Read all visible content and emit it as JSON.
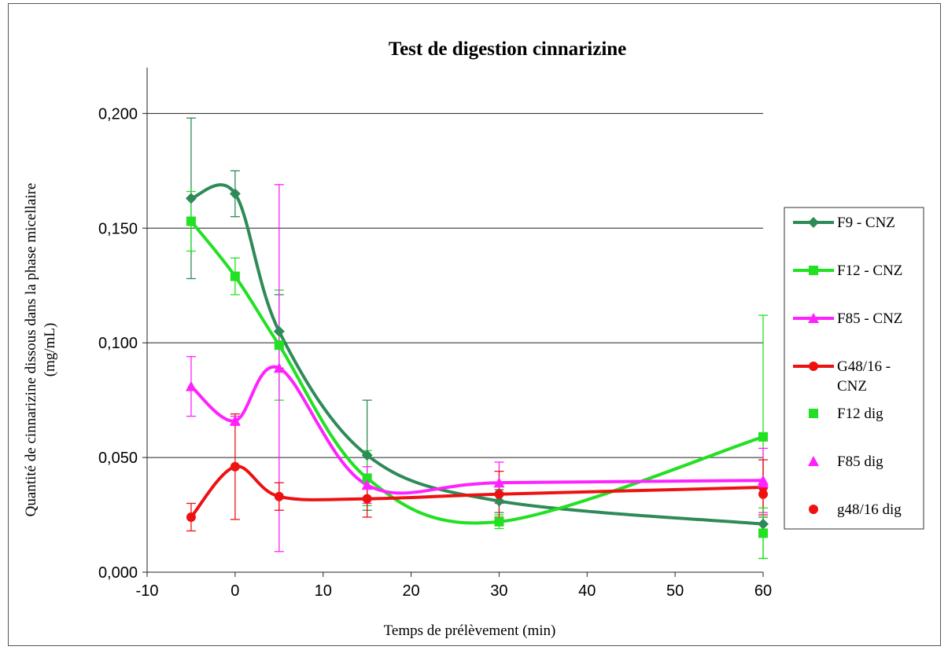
{
  "chart_data": {
    "type": "line",
    "title": "Test de digestion cinnarizine",
    "xlabel": "Temps de prélèvement (min)",
    "ylabel_lines": [
      "Quantité de cinnarizine dissous dans  la phase micellaire",
      "(mg/mL)"
    ],
    "xlim": [
      -10,
      60
    ],
    "ylim": [
      0,
      0.22
    ],
    "x_ticks": [
      -10,
      0,
      10,
      20,
      30,
      40,
      50,
      60
    ],
    "x_tick_labels": [
      "-10",
      "0",
      "10",
      "20",
      "30",
      "40",
      "50",
      "60"
    ],
    "y_ticks": [
      0,
      0.05,
      0.1,
      0.15,
      0.2
    ],
    "y_tick_labels": [
      "0,000",
      "0,050",
      "0,100",
      "0,150",
      "0,200"
    ],
    "grid": "horizontal",
    "legend_position": "right",
    "series": [
      {
        "name": "F9 - CNZ",
        "color": "#2e8b57",
        "marker": "diamond",
        "line": true,
        "x": [
          -5,
          0,
          5,
          15,
          30,
          60
        ],
        "y": [
          0.163,
          0.165,
          0.105,
          0.051,
          0.031,
          0.021
        ],
        "err": [
          0.035,
          0.01,
          0.016,
          0.024,
          0.005,
          0.003
        ]
      },
      {
        "name": "F12 - CNZ",
        "color": "#22e022",
        "marker": "square",
        "line": true,
        "x": [
          -5,
          0,
          5,
          15,
          30,
          60
        ],
        "y": [
          0.153,
          0.129,
          0.099,
          0.041,
          0.022,
          0.059
        ],
        "err": [
          0.013,
          0.008,
          0.024,
          0.012,
          0.003,
          0.053
        ]
      },
      {
        "name": "F85 - CNZ",
        "color": "#ff22ff",
        "marker": "triangle",
        "line": true,
        "x": [
          -5,
          0,
          5,
          15,
          30,
          60
        ],
        "y": [
          0.081,
          0.066,
          0.089,
          0.038,
          0.039,
          0.04
        ],
        "err": [
          0.013,
          0.002,
          0.08,
          0.008,
          0.009,
          0.014
        ]
      },
      {
        "name": "G48/16 - CNZ",
        "legend_lines": [
          "G48/16 -",
          "CNZ"
        ],
        "color": "#ee1111",
        "marker": "circle",
        "line": true,
        "x": [
          -5,
          0,
          5,
          15,
          30,
          60
        ],
        "y": [
          0.024,
          0.046,
          0.033,
          0.032,
          0.034,
          0.037
        ],
        "err": [
          0.006,
          0.023,
          0.006,
          0.008,
          0.01,
          0.012
        ]
      },
      {
        "name": "F12 dig",
        "color": "#22e022",
        "marker": "square",
        "line": false,
        "x": [
          60
        ],
        "y": [
          0.017
        ],
        "err": [
          0.011
        ]
      },
      {
        "name": "F85 dig",
        "color": "#ff22ff",
        "marker": "triangle",
        "line": false,
        "x": [
          60
        ],
        "y": [
          0.039
        ],
        "err": [
          0
        ]
      },
      {
        "name": "g48/16 dig",
        "color": "#ee1111",
        "marker": "circle",
        "line": false,
        "x": [
          60
        ],
        "y": [
          0.034
        ],
        "err": [
          0
        ]
      }
    ]
  }
}
